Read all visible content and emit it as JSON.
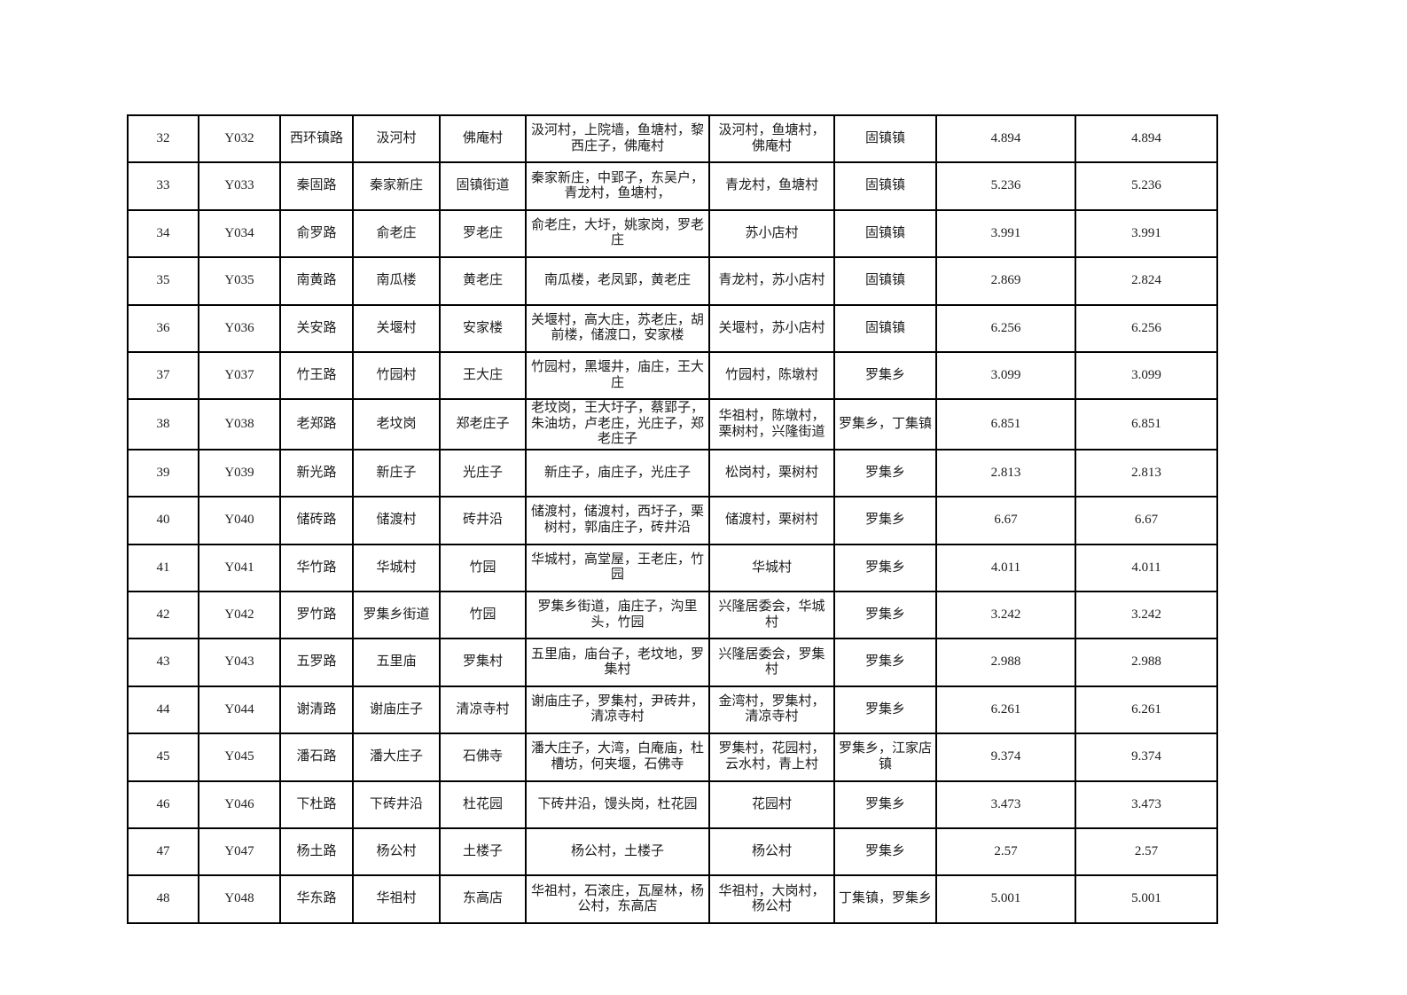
{
  "colors": {
    "border": "#000000",
    "text": "#1c1c1c",
    "background": "#ffffff"
  },
  "table": {
    "rows": [
      {
        "cells": [
          "32",
          "Y032",
          "西环镇路",
          "汲河村",
          "佛庵村",
          "汲河村，上院墙，鱼塘村，黎西庄子，佛庵村",
          "汲河村，鱼塘村，佛庵村",
          "固镇镇",
          "4.894",
          "4.894"
        ]
      },
      {
        "cells": [
          "33",
          "Y033",
          "秦固路",
          "秦家新庄",
          "固镇街道",
          "秦家新庄，中郢子，东吴户，青龙村，鱼塘村，",
          "青龙村，鱼塘村",
          "固镇镇",
          "5.236",
          "5.236"
        ]
      },
      {
        "cells": [
          "34",
          "Y034",
          "俞罗路",
          "俞老庄",
          "罗老庄",
          "俞老庄，大圩，姚家岗，罗老庄",
          "苏小店村",
          "固镇镇",
          "3.991",
          "3.991"
        ]
      },
      {
        "cells": [
          "35",
          "Y035",
          "南黄路",
          "南瓜楼",
          "黄老庄",
          "南瓜楼，老凤郢，黄老庄",
          "青龙村，苏小店村",
          "固镇镇",
          "2.869",
          "2.824"
        ]
      },
      {
        "cells": [
          "36",
          "Y036",
          "关安路",
          "关堰村",
          "安家楼",
          "关堰村，高大庄，苏老庄，胡前楼，储渡口，安家楼",
          "关堰村，苏小店村",
          "固镇镇",
          "6.256",
          "6.256"
        ]
      },
      {
        "cells": [
          "37",
          "Y037",
          "竹王路",
          "竹园村",
          "王大庄",
          "竹园村，黑堰井，庙庄，王大庄",
          "竹园村，陈墩村",
          "罗集乡",
          "3.099",
          "3.099"
        ]
      },
      {
        "cells": [
          "38",
          "Y038",
          "老郑路",
          "老坟岗",
          "郑老庄子",
          "老坟岗，王大圩子，蔡郢子，朱油坊，卢老庄，光庄子，郑老庄子",
          "华祖村，陈墩村，栗树村，兴隆街道",
          "罗集乡，丁集镇",
          "6.851",
          "6.851"
        ]
      },
      {
        "cells": [
          "39",
          "Y039",
          "新光路",
          "新庄子",
          "光庄子",
          "新庄子，庙庄子，光庄子",
          "松岗村，栗树村",
          "罗集乡",
          "2.813",
          "2.813"
        ]
      },
      {
        "cells": [
          "40",
          "Y040",
          "储砖路",
          "储渡村",
          "砖井沿",
          "储渡村，储渡村，西圩子，栗树村，郭庙庄子，砖井沿",
          "储渡村，栗树村",
          "罗集乡",
          "6.67",
          "6.67"
        ]
      },
      {
        "cells": [
          "41",
          "Y041",
          "华竹路",
          "华城村",
          "竹园",
          "华城村，高堂屋，王老庄，竹园",
          "华城村",
          "罗集乡",
          "4.011",
          "4.011"
        ]
      },
      {
        "cells": [
          "42",
          "Y042",
          "罗竹路",
          "罗集乡街道",
          "竹园",
          "罗集乡街道，庙庄子，沟里头，竹园",
          "兴隆居委会，华城村",
          "罗集乡",
          "3.242",
          "3.242"
        ]
      },
      {
        "cells": [
          "43",
          "Y043",
          "五罗路",
          "五里庙",
          "罗集村",
          "五里庙，庙台子，老坟地，罗集村",
          "兴隆居委会，罗集村",
          "罗集乡",
          "2.988",
          "2.988"
        ]
      },
      {
        "cells": [
          "44",
          "Y044",
          "谢清路",
          "谢庙庄子",
          "清凉寺村",
          "谢庙庄子，罗集村，尹砖井，清凉寺村",
          "金湾村，罗集村，清凉寺村",
          "罗集乡",
          "6.261",
          "6.261"
        ]
      },
      {
        "cells": [
          "45",
          "Y045",
          "潘石路",
          "潘大庄子",
          "石佛寺",
          "潘大庄子，大湾，白庵庙，杜槽坊，何夹堰，石佛寺",
          "罗集村，花园村，云水村，青上村",
          "罗集乡，江家店镇",
          "9.374",
          "9.374"
        ]
      },
      {
        "cells": [
          "46",
          "Y046",
          "下杜路",
          "下砖井沿",
          "杜花园",
          "下砖井沿，馒头岗，杜花园",
          "花园村",
          "罗集乡",
          "3.473",
          "3.473"
        ]
      },
      {
        "cells": [
          "47",
          "Y047",
          "杨土路",
          "杨公村",
          "土楼子",
          "杨公村，土楼子",
          "杨公村",
          "罗集乡",
          "2.57",
          "2.57"
        ]
      },
      {
        "cells": [
          "48",
          "Y048",
          "华东路",
          "华祖村",
          "东高店",
          "华祖村，石滚庄，瓦屋林，杨公村，东高店",
          "华祖村，大岗村，杨公村",
          "丁集镇，罗集乡",
          "5.001",
          "5.001"
        ]
      }
    ]
  }
}
